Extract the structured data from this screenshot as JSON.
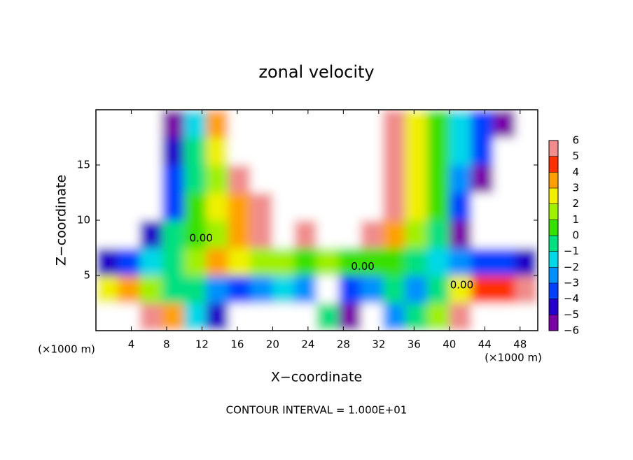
{
  "chart_data": {
    "type": "contour",
    "title": "zonal velocity",
    "xlabel": "X−coordinate",
    "ylabel": "Z−coordinate",
    "xunits": "(×1000 m)",
    "footnote": "CONTOUR INTERVAL = 1.000E+01",
    "xlim": [
      0,
      50
    ],
    "ylim": [
      0,
      20
    ],
    "xticks": [
      4,
      8,
      12,
      16,
      20,
      24,
      28,
      32,
      36,
      40,
      44,
      48
    ],
    "yticks": [
      5,
      10,
      15
    ],
    "z": [
      [
        8,
        8,
        5,
        3,
        -2,
        -5,
        -8,
        -8,
        -8,
        -7,
        -1,
        -6,
        -8,
        -3,
        -1,
        1,
        6,
        8,
        8,
        8
      ],
      [
        2.5,
        3,
        1,
        -1,
        -0.5,
        -3,
        -4,
        -3,
        -1.5,
        -3,
        -8,
        -4,
        -3,
        -1,
        -3,
        -1,
        2,
        4,
        4.5,
        5
      ],
      [
        -4.5,
        -3.5,
        -2,
        -0.5,
        1,
        3,
        2.5,
        1.5,
        1,
        0.5,
        1,
        0.5,
        0.5,
        0,
        -0.5,
        -2,
        -3,
        -3.5,
        -4,
        -4.5
      ],
      [
        -8,
        -7,
        -4.5,
        -1,
        0.5,
        1.5,
        3.5,
        5,
        6.5,
        5.5,
        6.5,
        7,
        5,
        3,
        1,
        -1,
        -5.5,
        -8,
        -8,
        -8
      ],
      [
        -8,
        -8,
        -7,
        -3.5,
        0.5,
        2,
        3,
        6,
        8,
        8,
        8,
        8,
        7,
        5,
        2,
        0,
        -4,
        -8,
        -8,
        -8
      ],
      [
        -8,
        -8,
        -7,
        -4,
        -0.5,
        1.5,
        5,
        8,
        8,
        8,
        8,
        8,
        8,
        5.5,
        2.5,
        0,
        -3,
        -6,
        -8,
        -8
      ],
      [
        -8,
        -8,
        -7,
        -4.5,
        -1,
        2,
        7,
        8,
        8,
        8,
        8,
        8,
        8,
        5,
        2.5,
        0,
        -2,
        -4,
        -7,
        -8
      ],
      [
        -8,
        -8,
        -8,
        -5.5,
        -2,
        3,
        8,
        8,
        8,
        8,
        8,
        8,
        8,
        5,
        2.5,
        0,
        -2,
        -4,
        -5.5,
        -7
      ]
    ],
    "contour_labels": [
      {
        "value": 0,
        "label": "0.00",
        "x": 11.9,
        "y": 8.35
      },
      {
        "value": 0,
        "label": "0.00",
        "x": 30.2,
        "y": 5.8
      },
      {
        "value": 0,
        "label": "0.00",
        "x": 41.4,
        "y": 4.1
      }
    ],
    "colorbar": {
      "clim": [
        -6,
        6
      ],
      "ticks": [
        {
          "value": -6,
          "label": "−6"
        },
        {
          "value": -5,
          "label": "−5"
        },
        {
          "value": -4,
          "label": "−4"
        },
        {
          "value": -3,
          "label": "−3"
        },
        {
          "value": -2,
          "label": "−2"
        },
        {
          "value": -1,
          "label": "−1"
        },
        0,
        1,
        2,
        3,
        4,
        5,
        6
      ],
      "colors": [
        "#7a00a8",
        "#2400c8",
        "#0040ff",
        "#0090ff",
        "#00d8e8",
        "#00e080",
        "#38e000",
        "#a0f000",
        "#f0f000",
        "#ffa000",
        "#ff3000",
        "#f08c8c"
      ]
    }
  }
}
